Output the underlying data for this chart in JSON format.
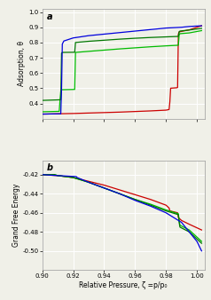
{
  "panel_a_label": "a",
  "panel_b_label": "b",
  "xlabel": "Relative Pressure, ζ =p/p₀",
  "ylabel_a": "Adsorption, θ",
  "ylabel_b": "Grand Free Energy",
  "xlim": [
    0.9,
    1.005
  ],
  "ylim_a": [
    0.3,
    1.02
  ],
  "ylim_b": [
    -0.52,
    -0.405
  ],
  "xticks": [
    0.9,
    0.92,
    0.94,
    0.96,
    0.98,
    1.0
  ],
  "yticks_a": [
    0.4,
    0.5,
    0.6,
    0.7,
    0.8,
    0.9,
    1.0
  ],
  "yticks_b": [
    -0.5,
    -0.48,
    -0.46,
    -0.44,
    -0.42
  ],
  "colors": {
    "blue": "#0000dd",
    "green_dark": "#007700",
    "green_light": "#00bb00",
    "red": "#cc0000"
  },
  "bg_color": "#f0f0e8",
  "grid_color": "#ffffff",
  "tick_label_fontsize": 5,
  "axis_label_fontsize": 5.5,
  "panel_label_fontsize": 7
}
